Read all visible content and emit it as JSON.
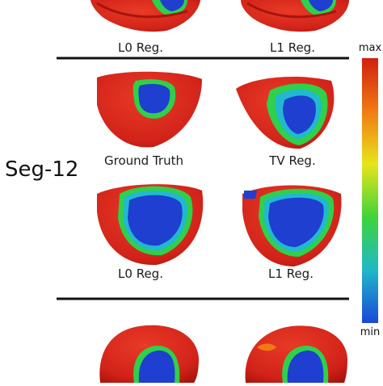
{
  "row_label": "Seg-12",
  "panel_labels": {
    "top_left": "L0 Reg.",
    "top_right": "L1 Reg.",
    "mid_left": "Ground Truth",
    "mid_right": "TV Reg.",
    "low_left": "L0 Reg.",
    "low_right": "L1 Reg."
  },
  "colorbar": {
    "max_label": "max",
    "min_label": "min",
    "colors": [
      "#d21f10",
      "#f07a12",
      "#e8e51a",
      "#3fd43a",
      "#1fb8c8",
      "#1a48d8"
    ]
  },
  "colors": {
    "heart_red": "#d8261a",
    "heart_dark": "#a8140c",
    "scar_blue": "#1f3fd0",
    "border_green": "#2fd04a",
    "border_cyan": "#22b8d0",
    "divider": "#111111"
  }
}
